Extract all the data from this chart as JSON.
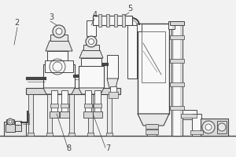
{
  "bg_color": "#f2f2f2",
  "line_color": "#666666",
  "dark_color": "#444444",
  "light_fill": "#d8d8d8",
  "mid_fill": "#e8e8e8",
  "white_fill": "#f8f8f8",
  "label_fontsize": 7,
  "figsize": [
    3.0,
    2.0
  ],
  "dpi": 100
}
